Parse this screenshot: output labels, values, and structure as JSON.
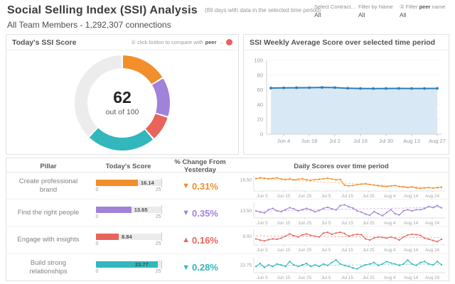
{
  "header": {
    "title": "Social Selling Index (SSI) Analysis",
    "days_note": "(89 days with data in the selected time period)",
    "subtitle": "All Team Members - 1,292,307 connections"
  },
  "filters": [
    {
      "label": "Select Contract...",
      "value": "All"
    },
    {
      "label": "Filter by Name",
      "value": "All"
    },
    {
      "label_prefix": "② Filter ",
      "label_bold": "peer",
      "label_suffix": " name",
      "value": "All"
    }
  ],
  "today_panel": {
    "title": "Today's SSI Score",
    "hint_prefix": "① click button to compare with",
    "hint_bold": "peer",
    "hint_arrow": "→",
    "score": "62",
    "caption": "out of 100"
  },
  "weekly_panel": {
    "title": "SSI Weekly Average Score over selected time period"
  },
  "table": {
    "headers": [
      "Pillar",
      "Today's Score",
      "% Change From Yesterday",
      "Daily Scores over time period"
    ],
    "bar_min_label": "0",
    "bar_max_label": "25",
    "rows": [
      {
        "name": "Create professional brand",
        "score": 16.14,
        "score_label": "16.14",
        "arrow": "▼",
        "change": "0.31%",
        "color": "#f28e2b"
      },
      {
        "name": "Find the right people",
        "score": 13.65,
        "score_label": "13.65",
        "arrow": "▼",
        "change": "0.35%",
        "color": "#a182d9"
      },
      {
        "name": "Engage with insights",
        "score": 8.84,
        "score_label": "8.84",
        "arrow": "▲",
        "change": "0.16%",
        "color": "#e8645a"
      },
      {
        "name": "Build strong relationships",
        "score": 23.77,
        "score_label": "23.77",
        "arrow": "▼",
        "change": "0.28%",
        "color": "#31b7bc"
      }
    ]
  },
  "chart_data": [
    {
      "id": "donut",
      "type": "pie",
      "title": "Today's SSI Score",
      "center_label": "62",
      "caption": "out of 100",
      "segments": [
        {
          "name": "Create professional brand",
          "value": 16.14,
          "color": "#f28e2b"
        },
        {
          "name": "Find the right people",
          "value": 13.65,
          "color": "#a182d9"
        },
        {
          "name": "Engage with insights",
          "value": 8.84,
          "color": "#e8645a"
        },
        {
          "name": "Build strong relationships",
          "value": 23.77,
          "color": "#31b7bc"
        },
        {
          "name": "remaining to 100",
          "value": 37.6,
          "color": "#ececec"
        }
      ]
    },
    {
      "id": "weekly",
      "type": "area",
      "title": "SSI Weekly Average Score over selected time period",
      "ylim": [
        0,
        100
      ],
      "yticks": [
        0,
        20,
        40,
        60,
        80,
        100
      ],
      "x_tick_labels": [
        "Jun 4",
        "Jun 18",
        "Jul 2",
        "Jul 16",
        "Jul 30",
        "Aug 13",
        "Aug 27"
      ],
      "label_point_indices": [
        1,
        3,
        5,
        7,
        9,
        11,
        13
      ],
      "values": [
        62.5,
        62.7,
        62.9,
        63.0,
        63.3,
        63.1,
        62.2,
        61.9,
        61.8,
        61.9,
        62.0,
        61.9,
        61.9,
        62.0
      ],
      "line_color": "#2e7dba",
      "fill_color": "#d9e8f5"
    },
    {
      "id": "spark-create-professional-brand",
      "type": "line",
      "color": "#f28e2b",
      "axis_label": "16.50",
      "axis_value": 16.5,
      "ylim": [
        15.95,
        16.72
      ],
      "trend": [
        16.57,
        16.08
      ],
      "x_labels": [
        "Jun 5",
        "Jun 15",
        "Jun 25",
        "Jul 5",
        "Jul 15",
        "Jul 25",
        "Aug 4",
        "Aug 14",
        "Aug 24"
      ],
      "values": [
        16.56,
        16.6,
        16.58,
        16.55,
        16.57,
        16.6,
        16.54,
        16.52,
        16.55,
        16.5,
        16.53,
        16.55,
        16.5,
        16.48,
        16.51,
        16.53,
        16.55,
        16.58,
        16.54,
        16.5,
        16.52,
        16.24,
        16.2,
        16.22,
        16.26,
        16.29,
        16.31,
        16.27,
        16.24,
        16.21,
        16.19,
        16.17,
        16.2,
        16.22,
        16.17,
        16.15,
        16.12,
        16.15,
        16.1,
        16.08,
        16.1,
        16.12,
        16.09,
        16.12,
        16.14
      ]
    },
    {
      "id": "spark-find-the-right-people",
      "type": "line",
      "color": "#a182d9",
      "axis_label": "13.50",
      "axis_value": 13.5,
      "ylim": [
        13.15,
        13.92
      ],
      "trend": [
        13.48,
        13.68
      ],
      "x_labels": [
        "Jun 5",
        "Jun 15",
        "Jun 25",
        "Jul 5",
        "Jul 15",
        "Jul 25",
        "Aug 4",
        "Aug 14",
        "Aug 24"
      ],
      "values": [
        13.5,
        13.44,
        13.4,
        13.56,
        13.62,
        13.5,
        13.46,
        13.56,
        13.66,
        13.6,
        13.5,
        13.56,
        13.62,
        13.55,
        13.45,
        13.52,
        13.62,
        13.68,
        13.6,
        13.55,
        13.76,
        13.8,
        13.7,
        13.64,
        13.5,
        13.44,
        13.34,
        13.28,
        13.46,
        13.36,
        13.26,
        13.42,
        13.56,
        13.36,
        13.3,
        13.5,
        13.56,
        13.5,
        13.56,
        13.56,
        13.62,
        13.72,
        13.66,
        13.76,
        13.65
      ]
    },
    {
      "id": "spark-engage-with-insights",
      "type": "line",
      "color": "#e8645a",
      "axis_label": "9.00",
      "axis_value": 9.0,
      "ylim": [
        8.55,
        9.35
      ],
      "trend": [
        9.02,
        8.92
      ],
      "x_labels": [
        "Jun 5",
        "Jun 15",
        "Jun 25",
        "Jul 5",
        "Jul 15",
        "Jul 25",
        "Aug 4",
        "Aug 14",
        "Aug 24"
      ],
      "values": [
        8.86,
        8.8,
        8.76,
        8.82,
        8.86,
        8.84,
        8.9,
        9.0,
        9.12,
        9.02,
        8.96,
        9.06,
        9.12,
        9.04,
        9.0,
        8.96,
        9.16,
        9.2,
        9.1,
        9.16,
        9.2,
        9.14,
        9.0,
        9.06,
        9.1,
        9.08,
        8.86,
        8.8,
        8.9,
        8.96,
        8.94,
        8.9,
        8.96,
        8.9,
        8.8,
        8.96,
        9.06,
        9.1,
        9.08,
        9.04,
        8.9,
        8.84,
        8.78,
        8.72,
        8.84
      ]
    },
    {
      "id": "spark-build-strong-relationships",
      "type": "line",
      "color": "#31b7bc",
      "axis_label": "23.75",
      "axis_value": 23.75,
      "ylim": [
        23.45,
        24.08
      ],
      "trend": [
        23.73,
        23.79
      ],
      "x_labels": [
        "Jun 5",
        "Jun 15",
        "Jun 25",
        "Jul 5",
        "Jul 15",
        "Jul 25",
        "Aug 4",
        "Aug 14",
        "Aug 24"
      ],
      "values": [
        23.7,
        23.82,
        23.66,
        23.76,
        23.7,
        23.8,
        23.76,
        23.7,
        23.9,
        23.76,
        23.7,
        23.76,
        23.82,
        23.7,
        23.76,
        23.7,
        23.8,
        23.74,
        23.86,
        23.96,
        23.8,
        23.74,
        23.7,
        23.64,
        23.6,
        23.7,
        23.76,
        23.8,
        23.86,
        23.74,
        23.8,
        23.9,
        23.84,
        23.8,
        23.74,
        23.8,
        23.96,
        23.8,
        23.74,
        23.86,
        23.9,
        23.8,
        23.76,
        23.9,
        23.77
      ]
    }
  ]
}
